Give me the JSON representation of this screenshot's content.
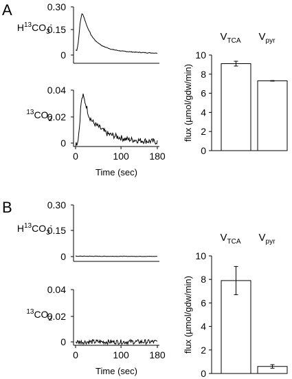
{
  "chart_data": [
    {
      "panel": "A",
      "type": "line",
      "species": "H13CO3-",
      "species_parts": {
        "pre": "H",
        "sup": "13",
        "base": "CO",
        "sub": "3",
        "tail": "-"
      },
      "yticks": [
        "0.30",
        "0.15",
        "0"
      ],
      "ylim": [
        0,
        0.3
      ],
      "xlim": [
        0,
        180
      ],
      "series": [
        {
          "points": [
            [
              0,
              0.03
            ],
            [
              3,
              0.03
            ],
            [
              6,
              0.08
            ],
            [
              10,
              0.2
            ],
            [
              14,
              0.26
            ],
            [
              18,
              0.24
            ],
            [
              25,
              0.18
            ],
            [
              35,
              0.12
            ],
            [
              45,
              0.085
            ],
            [
              60,
              0.055
            ],
            [
              80,
              0.035
            ],
            [
              100,
              0.025
            ],
            [
              130,
              0.018
            ],
            [
              160,
              0.014
            ],
            [
              180,
              0.012
            ]
          ],
          "noise": 0.002
        }
      ]
    },
    {
      "panel": "A",
      "type": "line",
      "species": "13CO2",
      "species_parts": {
        "pre": "",
        "sup": "13",
        "base": "CO",
        "sub": "2",
        "tail": ""
      },
      "yticks": [
        "0.04",
        "0.02",
        "0"
      ],
      "ylim": [
        0,
        0.04
      ],
      "xlim": [
        0,
        180
      ],
      "xticks": [
        "0",
        "100",
        "180"
      ],
      "xlabel": "Time (sec)",
      "series": [
        {
          "points": [
            [
              0,
              0.0
            ],
            [
              4,
              0.0
            ],
            [
              8,
              0.01
            ],
            [
              12,
              0.03
            ],
            [
              16,
              0.036
            ],
            [
              22,
              0.03
            ],
            [
              30,
              0.02
            ],
            [
              40,
              0.015
            ],
            [
              55,
              0.011
            ],
            [
              70,
              0.007
            ],
            [
              90,
              0.005
            ],
            [
              110,
              0.003
            ],
            [
              140,
              0.002
            ],
            [
              180,
              0.001
            ]
          ],
          "noise": 0.0022
        }
      ]
    },
    {
      "panel": "A",
      "type": "bar",
      "ylabel": "flux (µmol/gdw/min)",
      "yticks": [
        "0",
        "2",
        "4",
        "6",
        "8",
        "10"
      ],
      "ylim": [
        0,
        10
      ],
      "categories": [
        {
          "main": "V",
          "sub": "TCA"
        },
        {
          "main": "V",
          "sub": "pyr"
        }
      ],
      "values": [
        9.1,
        7.3
      ],
      "errors": [
        0.25,
        0.03
      ]
    },
    {
      "panel": "B",
      "type": "line",
      "species": "H13CO3-",
      "species_parts": {
        "pre": "H",
        "sup": "13",
        "base": "CO",
        "sub": "3",
        "tail": "-"
      },
      "yticks": [
        "0.30",
        "0.15",
        "0"
      ],
      "ylim": [
        0,
        0.3
      ],
      "xlim": [
        0,
        180
      ],
      "series": [
        {
          "points": [
            [
              0,
              0.002
            ],
            [
              180,
              0.001
            ]
          ],
          "noise": 0.0012
        }
      ]
    },
    {
      "panel": "B",
      "type": "line",
      "species": "13CO2",
      "species_parts": {
        "pre": "",
        "sup": "13",
        "base": "CO",
        "sub": "2",
        "tail": ""
      },
      "yticks": [
        "0.04",
        "0.02",
        "0"
      ],
      "ylim": [
        0,
        0.04
      ],
      "xlim": [
        0,
        180
      ],
      "xticks": [
        "0",
        "100",
        "180"
      ],
      "xlabel": "Time (sec)",
      "series": [
        {
          "points": [
            [
              0,
              0.0
            ],
            [
              180,
              0.0
            ]
          ],
          "noise": 0.0018
        }
      ]
    },
    {
      "panel": "B",
      "type": "bar",
      "ylabel": "flux (µmol/gdw/min)",
      "yticks": [
        "0",
        "2",
        "4",
        "6",
        "8",
        "10"
      ],
      "ylim": [
        0,
        10
      ],
      "categories": [
        {
          "main": "V",
          "sub": "TCA"
        },
        {
          "main": "V",
          "sub": "pyr"
        }
      ],
      "values": [
        7.9,
        0.6
      ],
      "errors": [
        1.2,
        0.15
      ]
    }
  ],
  "panel_labels": [
    "A",
    "B"
  ]
}
